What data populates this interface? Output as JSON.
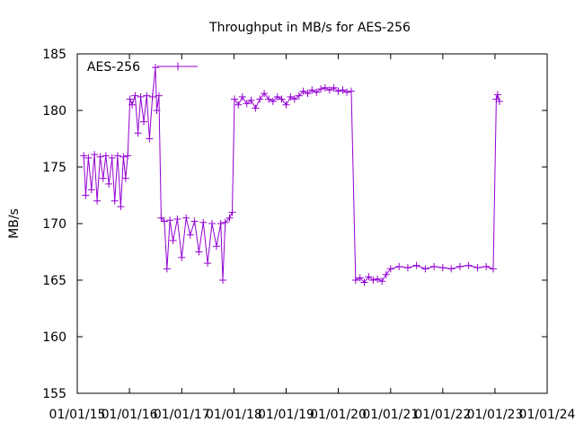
{
  "chart_data": {
    "type": "line",
    "title": "Throughput in MB/s for AES-256",
    "xlabel": "",
    "ylabel": "MB/s",
    "xlim": [
      "2015-01-01",
      "2024-01-01"
    ],
    "ylim": [
      155,
      185
    ],
    "grid": false,
    "legend": "top-left",
    "xticks": [
      "01/01/15",
      "01/01/16",
      "01/01/17",
      "01/01/18",
      "01/01/19",
      "01/01/20",
      "01/01/21",
      "01/01/22",
      "01/01/23",
      "01/01/24"
    ],
    "yticks": [
      155,
      160,
      165,
      170,
      175,
      180,
      185
    ],
    "series": [
      {
        "name": "AES-256",
        "color": "#9400d3",
        "marker": "plus",
        "points": [
          [
            "2015-02-15",
            176.0
          ],
          [
            "2015-03-01",
            172.5
          ],
          [
            "2015-03-20",
            175.8
          ],
          [
            "2015-04-10",
            173.0
          ],
          [
            "2015-05-01",
            176.1
          ],
          [
            "2015-05-20",
            172.0
          ],
          [
            "2015-06-10",
            175.9
          ],
          [
            "2015-07-01",
            174.0
          ],
          [
            "2015-07-20",
            176.0
          ],
          [
            "2015-08-10",
            173.5
          ],
          [
            "2015-09-01",
            175.8
          ],
          [
            "2015-09-20",
            172.0
          ],
          [
            "2015-10-10",
            176.0
          ],
          [
            "2015-11-01",
            171.5
          ],
          [
            "2015-11-20",
            175.9
          ],
          [
            "2015-12-05",
            174.0
          ],
          [
            "2015-12-20",
            176.0
          ],
          [
            "2016-01-05",
            181.0
          ],
          [
            "2016-01-20",
            180.5
          ],
          [
            "2016-02-10",
            181.3
          ],
          [
            "2016-03-01",
            178.0
          ],
          [
            "2016-03-20",
            181.2
          ],
          [
            "2016-04-10",
            179.0
          ],
          [
            "2016-05-01",
            181.3
          ],
          [
            "2016-05-20",
            177.5
          ],
          [
            "2016-06-10",
            181.2
          ],
          [
            "2016-07-01",
            183.8
          ],
          [
            "2016-07-10",
            180.0
          ],
          [
            "2016-07-25",
            181.3
          ],
          [
            "2016-08-10",
            170.5
          ],
          [
            "2016-09-01",
            170.2
          ],
          [
            "2016-09-20",
            166.0
          ],
          [
            "2016-10-10",
            170.3
          ],
          [
            "2016-11-01",
            168.5
          ],
          [
            "2016-12-01",
            170.4
          ],
          [
            "2017-01-01",
            167.0
          ],
          [
            "2017-02-01",
            170.5
          ],
          [
            "2017-03-01",
            169.0
          ],
          [
            "2017-04-01",
            170.2
          ],
          [
            "2017-05-01",
            167.5
          ],
          [
            "2017-06-01",
            170.1
          ],
          [
            "2017-07-01",
            166.5
          ],
          [
            "2017-08-01",
            170.0
          ],
          [
            "2017-09-01",
            168.0
          ],
          [
            "2017-10-01",
            170.0
          ],
          [
            "2017-10-15",
            165.0
          ],
          [
            "2017-11-01",
            170.1
          ],
          [
            "2017-12-01",
            170.5
          ],
          [
            "2017-12-20",
            171.0
          ],
          [
            "2018-01-05",
            181.0
          ],
          [
            "2018-02-01",
            180.5
          ],
          [
            "2018-03-01",
            181.2
          ],
          [
            "2018-04-01",
            180.6
          ],
          [
            "2018-05-01",
            180.9
          ],
          [
            "2018-06-01",
            180.2
          ],
          [
            "2018-07-01",
            181.0
          ],
          [
            "2018-08-01",
            181.5
          ],
          [
            "2018-09-01",
            181.0
          ],
          [
            "2018-10-01",
            180.8
          ],
          [
            "2018-11-01",
            181.2
          ],
          [
            "2018-12-01",
            181.0
          ],
          [
            "2019-01-01",
            180.5
          ],
          [
            "2019-02-01",
            181.2
          ],
          [
            "2019-03-01",
            181.0
          ],
          [
            "2019-04-01",
            181.3
          ],
          [
            "2019-05-01",
            181.7
          ],
          [
            "2019-06-01",
            181.5
          ],
          [
            "2019-07-01",
            181.8
          ],
          [
            "2019-08-01",
            181.6
          ],
          [
            "2019-09-01",
            181.9
          ],
          [
            "2019-10-01",
            182.0
          ],
          [
            "2019-11-01",
            181.8
          ],
          [
            "2019-12-01",
            182.0
          ],
          [
            "2020-01-01",
            181.7
          ],
          [
            "2020-02-01",
            181.8
          ],
          [
            "2020-03-01",
            181.6
          ],
          [
            "2020-04-01",
            181.7
          ],
          [
            "2020-05-01",
            165.0
          ],
          [
            "2020-06-01",
            165.2
          ],
          [
            "2020-07-01",
            164.8
          ],
          [
            "2020-08-01",
            165.3
          ],
          [
            "2020-09-01",
            165.0
          ],
          [
            "2020-10-01",
            165.1
          ],
          [
            "2020-11-01",
            164.9
          ],
          [
            "2020-12-01",
            165.5
          ],
          [
            "2021-01-01",
            166.0
          ],
          [
            "2021-03-01",
            166.2
          ],
          [
            "2021-05-01",
            166.1
          ],
          [
            "2021-07-01",
            166.3
          ],
          [
            "2021-09-01",
            166.0
          ],
          [
            "2021-11-01",
            166.2
          ],
          [
            "2022-01-01",
            166.1
          ],
          [
            "2022-03-01",
            166.0
          ],
          [
            "2022-05-01",
            166.2
          ],
          [
            "2022-07-01",
            166.3
          ],
          [
            "2022-09-01",
            166.1
          ],
          [
            "2022-11-01",
            166.2
          ],
          [
            "2022-12-20",
            166.0
          ],
          [
            "2023-01-10",
            181.0
          ],
          [
            "2023-01-20",
            181.4
          ],
          [
            "2023-02-01",
            180.8
          ]
        ],
        "annotations": []
      }
    ]
  }
}
